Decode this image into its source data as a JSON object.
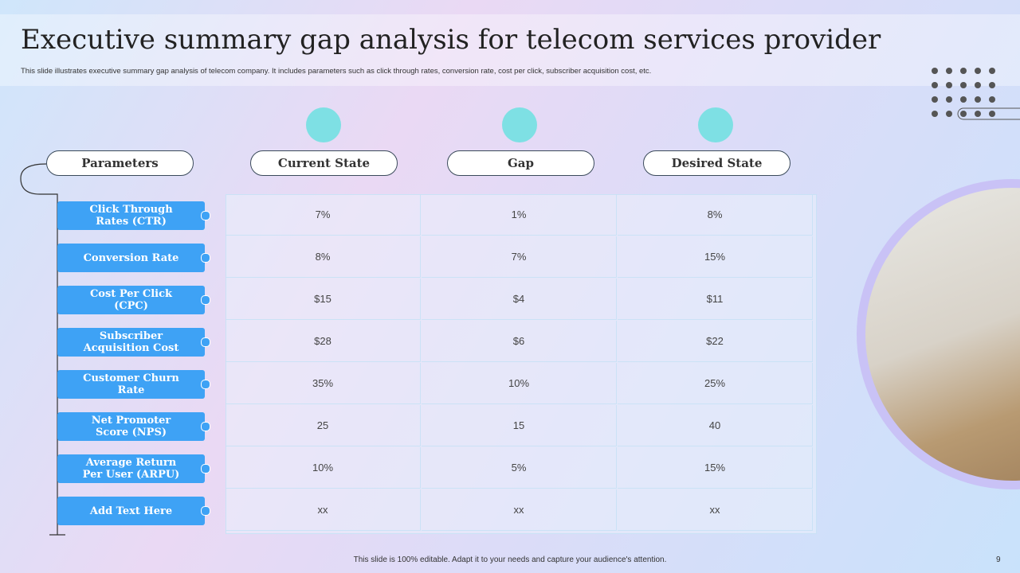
{
  "header": {
    "title": "Executive summary gap analysis for telecom services provider",
    "subtitle": "This slide illustrates executive summary gap analysis of telecom company. It includes parameters such as click through rates, conversion rate, cost per click, subscriber acquisition cost, etc."
  },
  "table": {
    "columns": [
      "Parameters",
      "Current State",
      "Gap",
      "Desired State"
    ],
    "rows": [
      [
        "Click Through Rates (CTR)",
        "7%",
        "1%",
        "8%"
      ],
      [
        "Conversion Rate",
        "8%",
        "7%",
        "15%"
      ],
      [
        "Cost Per Click (CPC)",
        "$15",
        "$4",
        "$11"
      ],
      [
        "Subscriber Acquisition Cost",
        "$28",
        "$6",
        "$22"
      ],
      [
        "Customer Churn Rate",
        "35%",
        "10%",
        "25%"
      ],
      [
        "Net Promoter Score (NPS)",
        "25",
        "15",
        "40"
      ],
      [
        "Average Return Per User (ARPU)",
        "10%",
        "5%",
        "15%"
      ],
      [
        "Add Text Here",
        "xx",
        "xx",
        "xx"
      ]
    ]
  },
  "footer": {
    "note": "This slide is 100% editable.  Adapt it to your needs and capture your audience's attention.",
    "page": "9"
  }
}
